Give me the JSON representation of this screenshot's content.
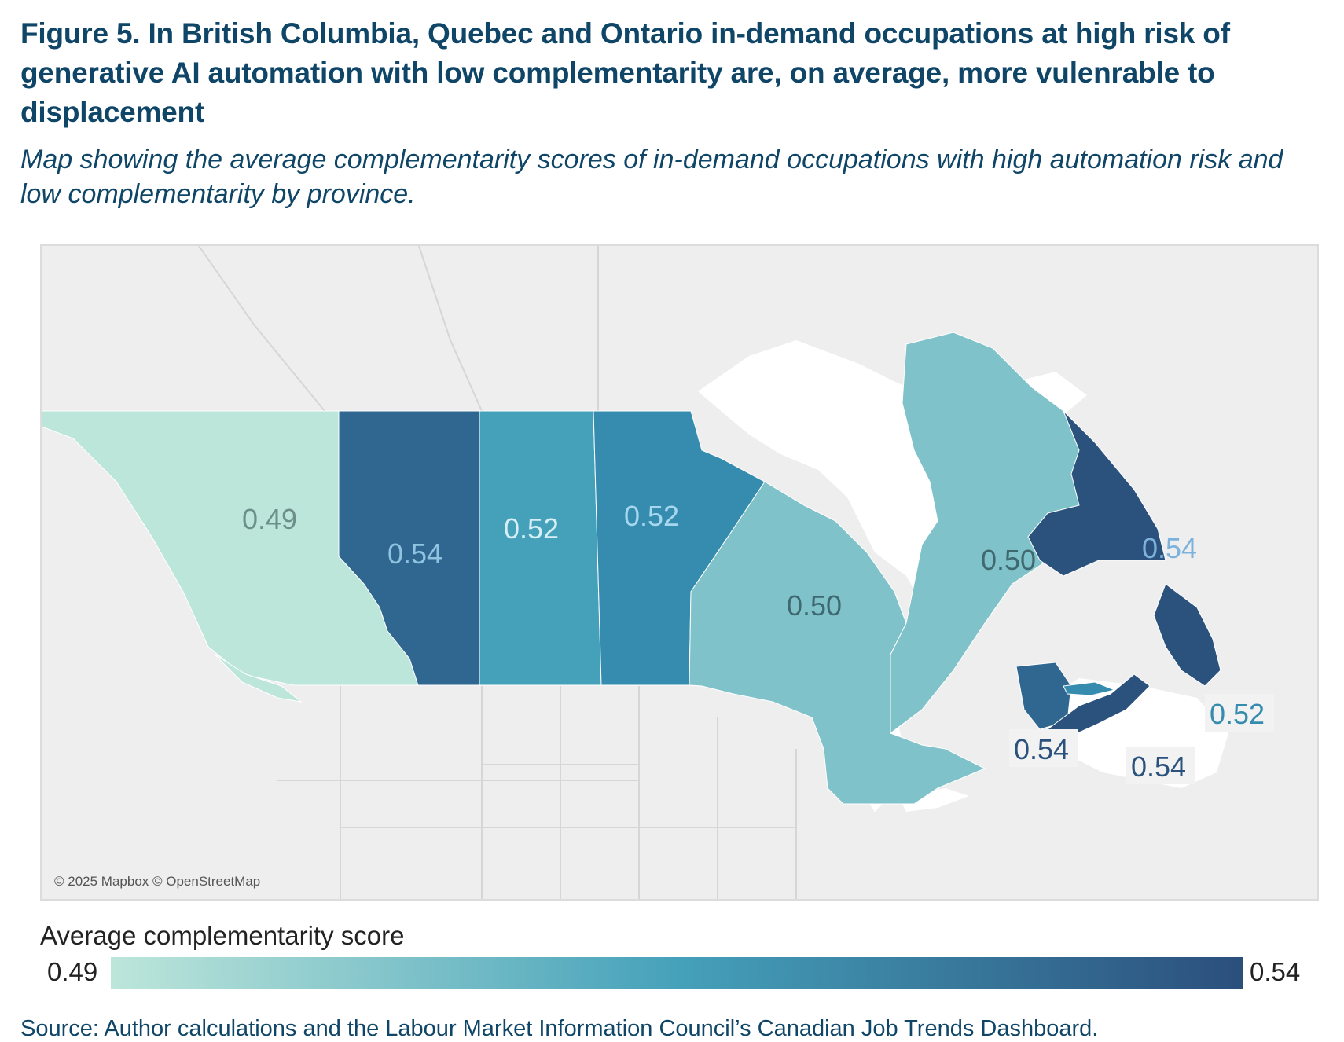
{
  "figure": {
    "title": "Figure 5. In British Columbia, Quebec and Ontario in-demand occupations at high risk of generative AI automation with low complementarity are, on average, more vulenrable to displacement",
    "subtitle": "Map showing the average complementarity scores of in-demand occupations with high automation risk and low complementarity by province."
  },
  "map": {
    "attribution": "© 2025 Mapbox © OpenStreetMap",
    "provinces": [
      {
        "id": "bc",
        "label": "0.49",
        "value": 0.49,
        "color": "#bde6da"
      },
      {
        "id": "ab",
        "label": "0.54",
        "value": 0.54,
        "color": "#2f6790"
      },
      {
        "id": "sk",
        "label": "0.52",
        "value": 0.52,
        "color": "#45a1ba"
      },
      {
        "id": "mb",
        "label": "0.52",
        "value": 0.52,
        "color": "#368cae"
      },
      {
        "id": "on",
        "label": "0.50",
        "value": 0.5,
        "color": "#80c2ca"
      },
      {
        "id": "qc",
        "label": "0.50",
        "value": 0.5,
        "color": "#80c2ca"
      },
      {
        "id": "nl",
        "label": "0.54",
        "value": 0.54,
        "color": "#2b527d"
      },
      {
        "id": "nb",
        "label": "0.54",
        "value": 0.54,
        "color": "#2f6790"
      },
      {
        "id": "ns",
        "label": "0.54",
        "value": 0.54,
        "color": "#2b527d"
      },
      {
        "id": "pe",
        "label": "0.52",
        "value": 0.52,
        "color": "#368cae"
      }
    ]
  },
  "legend": {
    "title": "Average complementarity score",
    "min_label": "0.49",
    "max_label": "0.54",
    "color_min": "#bde6da",
    "color_mid": "#45a1ba",
    "color_max": "#2b4f7c"
  },
  "source": "Source: Author calculations and the Labour Market Information Council’s Canadian Job Trends Dashboard."
}
